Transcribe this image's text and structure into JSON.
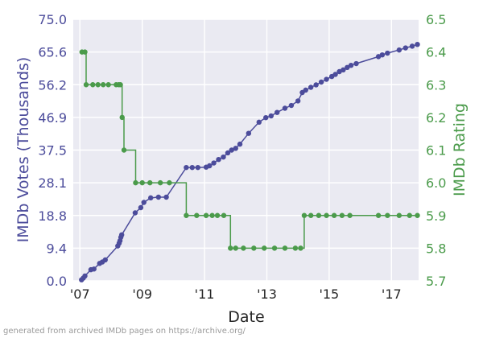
{
  "credit": "generated from archived IMDb pages on https://archive.org/",
  "colors": {
    "plot_background": "#eaeaf2",
    "grid": "#ffffff",
    "votes": "#4c4c9b",
    "rating": "#4b9b4b",
    "axis_text": "#262626"
  },
  "chart_data": {
    "type": "line",
    "xlabel": "Date",
    "x_tick_labels": [
      "'07",
      "'09",
      "'11",
      "'13",
      "'15",
      "'17"
    ],
    "x_tick_dates": [
      "2007-01-01",
      "2009-01-01",
      "2011-01-01",
      "2013-01-01",
      "2015-01-01",
      "2017-01-01"
    ],
    "xlim": [
      "2006-10-15",
      "2017-11-15"
    ],
    "grid": true,
    "y_left": {
      "label": "IMDb Votes (Thousands)",
      "ylim": [
        0,
        75
      ],
      "ticks": [
        "0.0",
        "9.4",
        "18.8",
        "28.1",
        "37.5",
        "46.9",
        "56.2",
        "65.6",
        "75.0"
      ],
      "tick_values": [
        0,
        9.375,
        18.75,
        28.125,
        37.5,
        46.875,
        56.25,
        65.625,
        75
      ]
    },
    "y_right": {
      "label": "IMDb Rating",
      "ylim": [
        5.7,
        6.5
      ],
      "ticks": [
        "5.7",
        "5.8",
        "5.9",
        "6.0",
        "6.1",
        "6.2",
        "6.3",
        "6.4",
        "6.5"
      ],
      "tick_values": [
        5.7,
        5.8,
        5.9,
        6.0,
        6.1,
        6.2,
        6.3,
        6.4,
        6.5
      ]
    },
    "series": [
      {
        "name": "IMDb Votes (Thousands)",
        "axis": "left",
        "points": [
          [
            "2007-01-20",
            0.3
          ],
          [
            "2007-02-10",
            0.8
          ],
          [
            "2007-03-01",
            1.4
          ],
          [
            "2007-05-10",
            3.2
          ],
          [
            "2007-06-15",
            3.4
          ],
          [
            "2007-08-20",
            5.0
          ],
          [
            "2007-09-20",
            5.4
          ],
          [
            "2007-10-25",
            6.0
          ],
          [
            "2008-03-20",
            10.0
          ],
          [
            "2008-04-05",
            10.8
          ],
          [
            "2008-04-15",
            11.5
          ],
          [
            "2008-04-25",
            12.5
          ],
          [
            "2008-05-05",
            13.2
          ],
          [
            "2008-10-10",
            19.5
          ],
          [
            "2008-12-15",
            21.0
          ],
          [
            "2009-01-20",
            22.5
          ],
          [
            "2009-04-10",
            23.8
          ],
          [
            "2009-07-10",
            24.0
          ],
          [
            "2009-10-10",
            24.0
          ],
          [
            "2010-06-01",
            32.5
          ],
          [
            "2010-08-10",
            32.5
          ],
          [
            "2010-10-15",
            32.5
          ],
          [
            "2011-01-20",
            32.6
          ],
          [
            "2011-03-01",
            33.0
          ],
          [
            "2011-04-20",
            33.8
          ],
          [
            "2011-06-15",
            34.8
          ],
          [
            "2011-08-10",
            35.5
          ],
          [
            "2011-10-01",
            36.7
          ],
          [
            "2011-11-15",
            37.5
          ],
          [
            "2012-01-01",
            38.0
          ],
          [
            "2012-02-20",
            39.2
          ],
          [
            "2012-06-01",
            42.3
          ],
          [
            "2012-10-01",
            45.5
          ],
          [
            "2012-12-20",
            46.8
          ],
          [
            "2013-02-20",
            47.3
          ],
          [
            "2013-05-01",
            48.3
          ],
          [
            "2013-08-01",
            49.5
          ],
          [
            "2013-10-15",
            50.3
          ],
          [
            "2014-01-01",
            51.6
          ],
          [
            "2014-02-20",
            54.0
          ],
          [
            "2014-04-01",
            54.7
          ],
          [
            "2014-06-01",
            55.5
          ],
          [
            "2014-08-01",
            56.2
          ],
          [
            "2014-10-01",
            57.0
          ],
          [
            "2014-12-01",
            57.8
          ],
          [
            "2015-02-01",
            58.6
          ],
          [
            "2015-03-15",
            59.2
          ],
          [
            "2015-05-01",
            60.0
          ],
          [
            "2015-06-15",
            60.5
          ],
          [
            "2015-08-01",
            61.2
          ],
          [
            "2015-09-15",
            61.8
          ],
          [
            "2015-11-15",
            62.3
          ],
          [
            "2016-08-01",
            64.3
          ],
          [
            "2016-09-15",
            64.8
          ],
          [
            "2016-11-15",
            65.3
          ],
          [
            "2017-04-01",
            66.2
          ],
          [
            "2017-06-15",
            66.8
          ],
          [
            "2017-09-01",
            67.3
          ],
          [
            "2017-11-01",
            67.8
          ]
        ]
      },
      {
        "name": "IMDb Rating",
        "axis": "right",
        "points": [
          [
            "2007-01-25",
            6.4
          ],
          [
            "2007-03-01",
            6.4
          ],
          [
            "2007-03-15",
            6.3
          ],
          [
            "2007-06-01",
            6.3
          ],
          [
            "2007-08-01",
            6.3
          ],
          [
            "2007-10-01",
            6.3
          ],
          [
            "2007-12-01",
            6.3
          ],
          [
            "2008-03-01",
            6.3
          ],
          [
            "2008-04-01",
            6.3
          ],
          [
            "2008-04-20",
            6.3
          ],
          [
            "2008-05-10",
            6.2
          ],
          [
            "2008-06-01",
            6.1
          ],
          [
            "2008-10-15",
            6.0
          ],
          [
            "2009-01-01",
            6.0
          ],
          [
            "2009-04-01",
            6.0
          ],
          [
            "2009-08-01",
            6.0
          ],
          [
            "2009-11-15",
            6.0
          ],
          [
            "2010-06-01",
            5.9
          ],
          [
            "2010-10-01",
            5.9
          ],
          [
            "2011-01-20",
            5.9
          ],
          [
            "2011-04-01",
            5.9
          ],
          [
            "2011-06-01",
            5.9
          ],
          [
            "2011-08-15",
            5.9
          ],
          [
            "2011-11-01",
            5.8
          ],
          [
            "2012-01-01",
            5.8
          ],
          [
            "2012-04-01",
            5.8
          ],
          [
            "2012-08-01",
            5.8
          ],
          [
            "2012-12-01",
            5.8
          ],
          [
            "2013-04-01",
            5.8
          ],
          [
            "2013-08-01",
            5.8
          ],
          [
            "2013-12-01",
            5.8
          ],
          [
            "2014-02-01",
            5.8
          ],
          [
            "2014-03-15",
            5.9
          ],
          [
            "2014-06-01",
            5.9
          ],
          [
            "2014-09-01",
            5.9
          ],
          [
            "2014-12-01",
            5.9
          ],
          [
            "2015-03-01",
            5.9
          ],
          [
            "2015-06-01",
            5.9
          ],
          [
            "2015-09-01",
            5.9
          ],
          [
            "2016-08-01",
            5.9
          ],
          [
            "2016-11-15",
            5.9
          ],
          [
            "2017-04-01",
            5.9
          ],
          [
            "2017-08-01",
            5.9
          ],
          [
            "2017-11-01",
            5.9
          ]
        ]
      }
    ]
  }
}
